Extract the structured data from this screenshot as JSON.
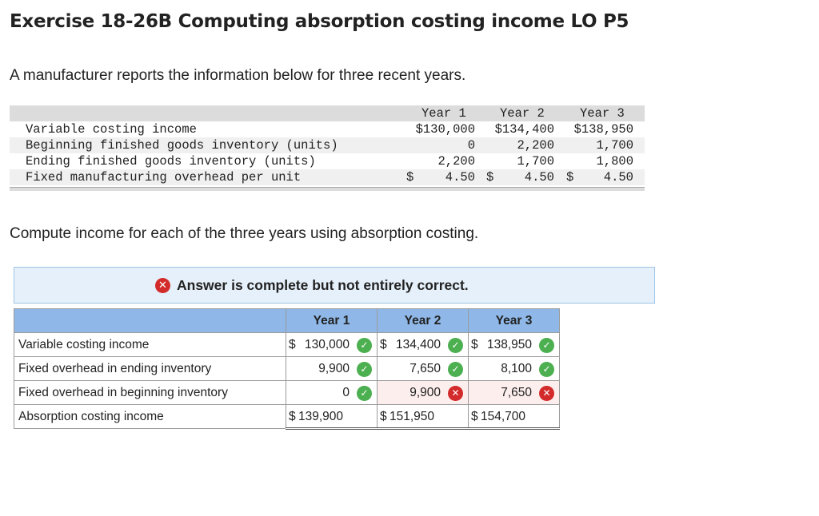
{
  "title": "Exercise 18-26B Computing absorption costing income LO P5",
  "intro": "A manufacturer reports the information below for three recent years.",
  "given": {
    "headers": [
      "Year 1",
      "Year 2",
      "Year 3"
    ],
    "rows": [
      {
        "label": "Variable costing income",
        "v1": "$130,000",
        "v2": "$134,400",
        "v3": "$138,950"
      },
      {
        "label": "Beginning finished goods inventory (units)",
        "v1": "0",
        "v2": "2,200",
        "v3": "1,700"
      },
      {
        "label": "Ending finished goods inventory (units)",
        "v1": "2,200",
        "v2": "1,700",
        "v3": "1,800"
      },
      {
        "label": "Fixed manufacturing overhead per unit",
        "d1": "$",
        "v1": "4.50",
        "d2": "$",
        "v2": "4.50",
        "d3": "$",
        "v3": "4.50"
      }
    ]
  },
  "compute_prompt": "Compute income for each of the three years using absorption costing.",
  "banner": {
    "icon": "x-circle-icon",
    "message": "Answer is complete but not entirely correct."
  },
  "answer": {
    "headers": [
      "",
      "Year 1",
      "Year 2",
      "Year 3"
    ],
    "rows": [
      {
        "label": "Variable costing income",
        "y1": {
          "dollar": "$",
          "value": "130,000",
          "status": "correct"
        },
        "y2": {
          "dollar": "$",
          "value": "134,400",
          "status": "correct"
        },
        "y3": {
          "dollar": "$",
          "value": "138,950",
          "status": "correct"
        }
      },
      {
        "label": "Fixed overhead in ending inventory",
        "y1": {
          "dollar": "",
          "value": "9,900",
          "status": "correct"
        },
        "y2": {
          "dollar": "",
          "value": "7,650",
          "status": "correct"
        },
        "y3": {
          "dollar": "",
          "value": "8,100",
          "status": "correct"
        }
      },
      {
        "label": "Fixed overhead in beginning inventory",
        "y1": {
          "dollar": "",
          "value": "0",
          "status": "correct"
        },
        "y2": {
          "dollar": "",
          "value": "9,900",
          "status": "incorrect"
        },
        "y3": {
          "dollar": "",
          "value": "7,650",
          "status": "incorrect"
        }
      },
      {
        "label": "Absorption costing income",
        "y1": {
          "dollar": "$",
          "value": "139,900",
          "status": ""
        },
        "y2": {
          "dollar": "$",
          "value": "151,950",
          "status": ""
        },
        "y3": {
          "dollar": "$",
          "value": "154,700",
          "status": ""
        }
      }
    ]
  },
  "marks": {
    "correct": "✓",
    "incorrect": "✕"
  },
  "colors": {
    "correct": "#4caf50",
    "incorrect": "#d32b2b",
    "header_bg": "#8fb8e8",
    "banner_bg": "#e5f0fa"
  }
}
